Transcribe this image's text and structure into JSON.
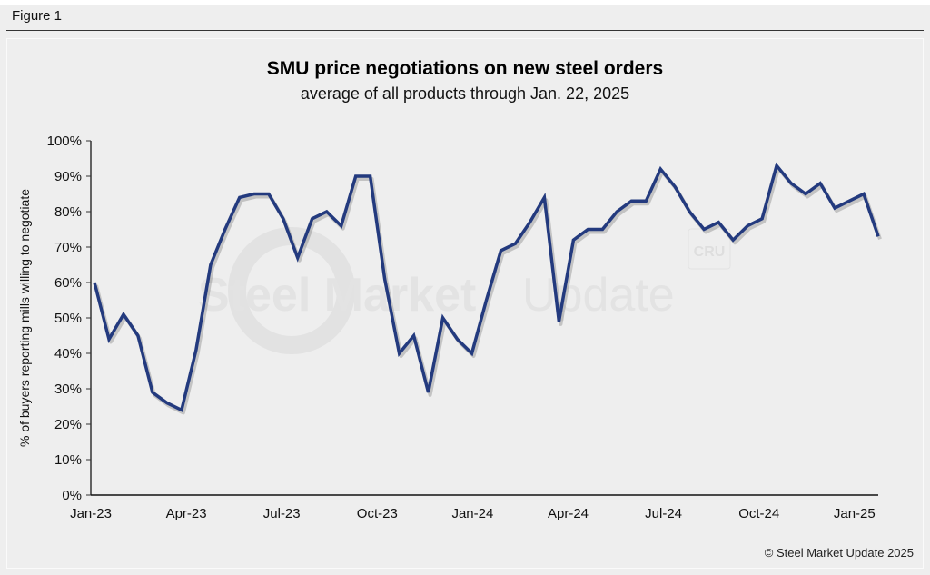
{
  "figure_label": "Figure 1",
  "footer": "© Steel Market Update 2025",
  "watermark": {
    "text_bold": "Steel Market",
    "text_light": "Update",
    "badge": "CRU"
  },
  "chart_data": {
    "type": "line",
    "title": "SMU price negotiations on new steel orders",
    "subtitle": "average of all products through Jan. 22, 2025",
    "xlabel": "",
    "ylabel": "% of buyers reporting mills willing to negotiate",
    "ylim": [
      0,
      100
    ],
    "y_ticks": [
      "0%",
      "10%",
      "20%",
      "30%",
      "40%",
      "50%",
      "60%",
      "70%",
      "80%",
      "90%",
      "100%"
    ],
    "x_ticks": [
      "Jan-23",
      "Apr-23",
      "Jul-23",
      "Oct-23",
      "Jan-24",
      "Apr-24",
      "Jul-24",
      "Oct-24",
      "Jan-25"
    ],
    "grid": false,
    "line_color": "#233a7e",
    "values": [
      60,
      44,
      51,
      45,
      29,
      26,
      24,
      41,
      65,
      75,
      84,
      85,
      85,
      78,
      67,
      78,
      80,
      76,
      90,
      90,
      61,
      40,
      45,
      29,
      50,
      44,
      40,
      55,
      69,
      71,
      77,
      84,
      49,
      72,
      75,
      75,
      80,
      83,
      83,
      92,
      87,
      80,
      75,
      77,
      72,
      76,
      78,
      93,
      88,
      85,
      88,
      81,
      83,
      85,
      73
    ]
  }
}
